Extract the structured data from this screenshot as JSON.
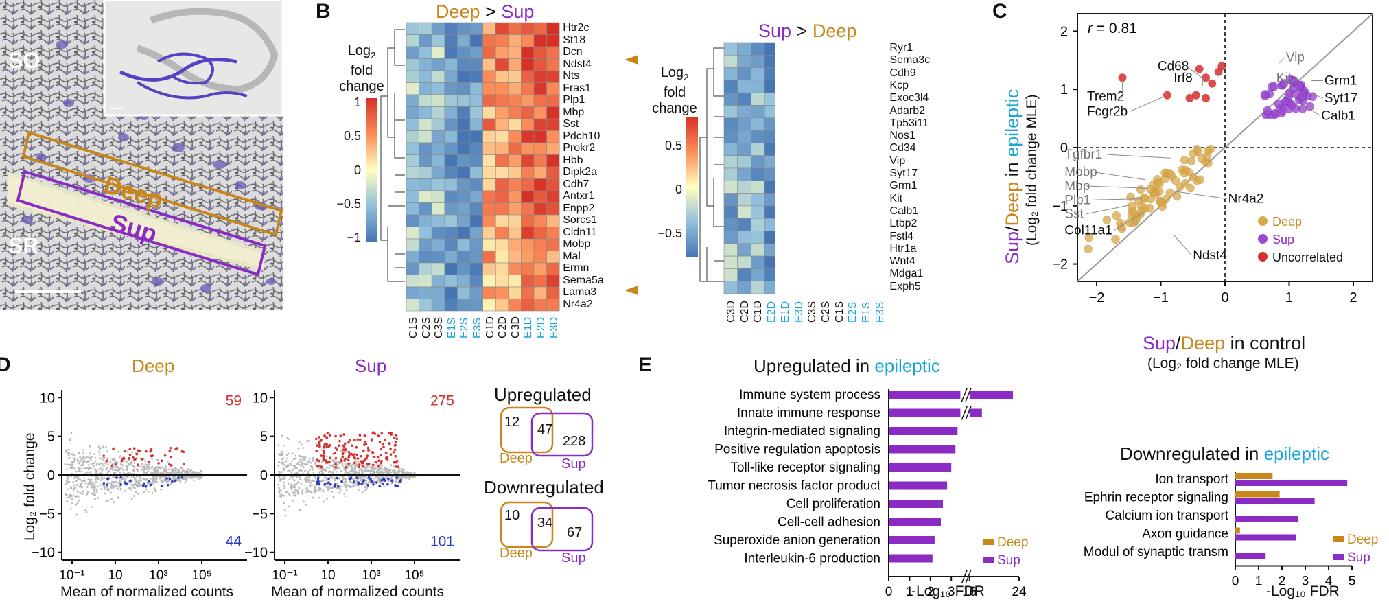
{
  "colors": {
    "deep": "#c8861b",
    "sup": "#8a2cc4",
    "blue": "#1aa7d6",
    "red": "#d4302e",
    "purple": "#8a2cc4",
    "gray": "#9a9a9a"
  },
  "panelA": {
    "label": "A",
    "so": "SO",
    "sr": "SR",
    "deep": "Deep",
    "sup": "Sup"
  },
  "panelB": {
    "label": "B",
    "left": {
      "title_a": "Deep",
      "title_op": " > ",
      "title_b": "Sup",
      "cbar_title1": "Log",
      "cbar_sub": "2",
      "cbar_title2": "fold",
      "cbar_title3": "change",
      "cbar_ticks": [
        "1",
        "0.5",
        "0",
        "−0.5",
        "−1"
      ],
      "genes": [
        "Htr2c",
        "St18",
        "Dcn",
        "Ndst4",
        "Nts",
        "Fras1",
        "Plp1",
        "Mbp",
        "Sst",
        "Pdch10",
        "Prokr2",
        "Hbb",
        "Dipk2a",
        "Cdh7",
        "Antxr1",
        "Enpp2",
        "Sorcs1",
        "Cldn11",
        "Mobp",
        "Mal",
        "Ermn",
        "Sema5a",
        "Lama3",
        "Nr4a2"
      ],
      "columns": [
        "C1S",
        "C2S",
        "C3S",
        "E1S",
        "E2S",
        "E3S",
        "C1D",
        "C2D",
        "C3D",
        "E1D",
        "E2D",
        "E3D"
      ]
    },
    "right": {
      "title_a": "Sup",
      "title_op": " > ",
      "title_b": "Deep",
      "cbar_title1": "Log",
      "cbar_sub": "2",
      "cbar_title2": "fold",
      "cbar_title3": "change",
      "cbar_ticks": [
        "0.5",
        "0",
        "−0.5"
      ],
      "genes": [
        "Ryr1",
        "Sema3c",
        "Cdh9",
        "Kcp",
        "Exoc3l4",
        "Adarb2",
        "Tp53i11",
        "Nos1",
        "Cd34",
        "Vip",
        "Syt17",
        "Grm1",
        "Kit",
        "Calb1",
        "Ltbp2",
        "Fstl4",
        "Htr1a",
        "Wnt4",
        "Mdga1",
        "Exph5"
      ],
      "columns": [
        "C3D",
        "C2D",
        "C1D",
        "E2D",
        "E1D",
        "E3D",
        "C3S",
        "C2S",
        "C1S",
        "E2S",
        "E1S",
        "E3S"
      ]
    }
  },
  "panelC": {
    "label": "C",
    "r_label": "r",
    "r_value": " = 0.81",
    "ylabel_a": "Sup",
    "ylabel_b": "/",
    "ylabel_c": "Deep",
    "ylabel_d": " in ",
    "ylabel_e": "epileptic",
    "ylabel2": "(Log₂ fold change MLE)",
    "xlabel_a": "Sup",
    "xlabel_b": "/",
    "xlabel_c": "Deep",
    "xlabel_d": " in control",
    "xlabel2": "(Log₂ fold change MLE)",
    "xticks": [
      "−2",
      "−1",
      "0",
      "1",
      "2"
    ],
    "yticks": [
      "2",
      "1",
      "0",
      "−1",
      "−2"
    ],
    "gene_labels": [
      "Vip",
      "Kit",
      "Grm1",
      "Syt17",
      "Calb1",
      "Cd68",
      "Irf8",
      "Trem2",
      "Fcgr2b",
      "Tgfbr1",
      "Mobp",
      "Mbp",
      "Plp1",
      "Sst",
      "Col11a1",
      "Nr4a2",
      "Ndst4"
    ],
    "legend": [
      "Deep",
      "Sup",
      "Uncorrelated"
    ]
  },
  "panelD": {
    "label": "D",
    "deep": {
      "title": "Deep",
      "up": "59",
      "down": "44"
    },
    "sup": {
      "title": "Sup",
      "up": "275",
      "down": "101"
    },
    "ylabel": "Log₂ fold change",
    "xlabel": "Mean of normalized counts",
    "yticks": [
      "10",
      "5",
      "0",
      "−5",
      "−10"
    ],
    "xticks": [
      "10⁻¹",
      "10",
      "10³",
      "10⁵"
    ],
    "venn_up": {
      "title": "Upregulated",
      "left": "12",
      "mid": "47",
      "right": "228",
      "deep": "Deep",
      "sup": "Sup"
    },
    "venn_down": {
      "title": "Downregulated",
      "left": "10",
      "mid": "34",
      "right": "67",
      "deep": "Deep",
      "sup": "Sup"
    }
  },
  "panelE": {
    "label": "E",
    "up_title_a": "Upregulated in ",
    "up_title_b": "epileptic",
    "down_title_a": "Downregulated in ",
    "down_title_b": "epileptic",
    "xlabel": "-Log₁₀ FDR",
    "up_xticks": [
      "0",
      "1",
      "2",
      "3",
      "16",
      "24"
    ],
    "down_xticks": [
      "0",
      "1",
      "2",
      "3",
      "4",
      "5"
    ],
    "legend": [
      "Deep",
      "Sup"
    ]
  },
  "chart_data": [
    {
      "type": "bar",
      "orientation": "horizontal",
      "title": "Upregulated in epileptic",
      "xlabel": "-Log₁₀ FDR",
      "categories": [
        "Immune system process",
        "Innate immune response",
        "Integrin-mediated signaling",
        "Positive regulation apoptosis",
        "Toll-like receptor signaling",
        "Tumor necrosis factor product",
        "Cell proliferation",
        "Cell-cell adhesion",
        "Superoxide anion generation",
        "Interleukin-6 production"
      ],
      "series": [
        {
          "name": "Sup",
          "values": [
            23,
            18,
            3.3,
            3.2,
            3.0,
            2.8,
            2.6,
            2.5,
            2.2,
            2.1
          ]
        }
      ],
      "broken_axis": [
        3.5,
        16
      ]
    },
    {
      "type": "bar",
      "orientation": "horizontal",
      "title": "Downregulated in epileptic",
      "xlabel": "-Log₁₀ FDR",
      "categories": [
        "Ion transport",
        "Ephrin receptor signaling",
        "Calcium ion transport",
        "Axon guidance",
        "Modul of synaptic transm"
      ],
      "series": [
        {
          "name": "Deep",
          "values": [
            1.6,
            1.9,
            0,
            0.2,
            0
          ]
        },
        {
          "name": "Sup",
          "values": [
            4.8,
            3.4,
            2.7,
            2.6,
            1.3
          ]
        }
      ],
      "xlim": [
        0,
        5
      ]
    }
  ]
}
